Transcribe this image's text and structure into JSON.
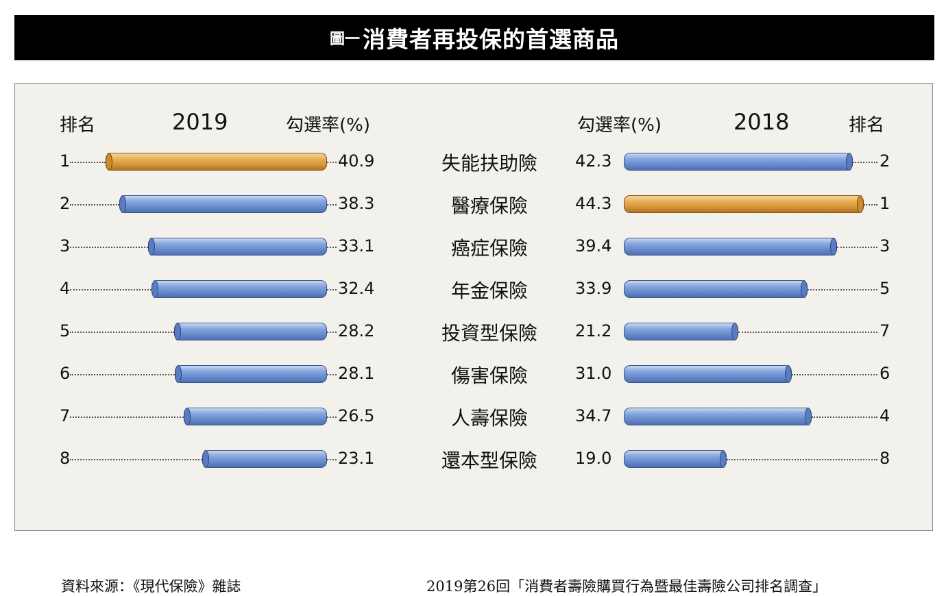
{
  "title": {
    "prefix": "圖一",
    "main": "消費者再投保的首選商品"
  },
  "headers": {
    "rank": "排名",
    "rate": "勾選率(%)",
    "year_left": "2019",
    "year_right": "2018"
  },
  "colors": {
    "top_rank": "#d9973a",
    "other": "#6b8fd1",
    "title_bg": "#000000",
    "panel_bg": "#f3f1ec"
  },
  "chart_data": {
    "type": "bar",
    "title": "消費者再投保的首選商品",
    "categories": [
      "失能扶助險",
      "醫療保險",
      "癌症保險",
      "年金保險",
      "投資型保險",
      "傷害保險",
      "人壽保險",
      "還本型保險"
    ],
    "series": [
      {
        "name": "2019",
        "values": [
          40.9,
          38.3,
          33.1,
          32.4,
          28.2,
          28.1,
          26.5,
          23.1
        ],
        "ranks": [
          "1",
          "2",
          "3",
          "4",
          "5",
          "6",
          "7",
          "8"
        ]
      },
      {
        "name": "2018",
        "values": [
          42.3,
          44.3,
          39.4,
          33.9,
          21.2,
          31.0,
          34.7,
          19.0
        ],
        "ranks": [
          "2",
          "1",
          "3",
          "5",
          "7",
          "6",
          "4",
          "8"
        ]
      }
    ],
    "value_labels_2019": [
      "40.9",
      "38.3",
      "33.1",
      "32.4",
      "28.2",
      "28.1",
      "26.5",
      "23.1"
    ],
    "value_labels_2018": [
      "42.3",
      "44.3",
      "39.4",
      "33.9",
      "21.2",
      "31.0",
      "34.7",
      "19.0"
    ],
    "xlim": [
      0,
      60
    ],
    "grid": false
  },
  "source": {
    "left": "資料來源：《現代保險》雜誌",
    "right": "2019第26回「消費者壽險購買行為暨最佳壽險公司排名調查」"
  }
}
